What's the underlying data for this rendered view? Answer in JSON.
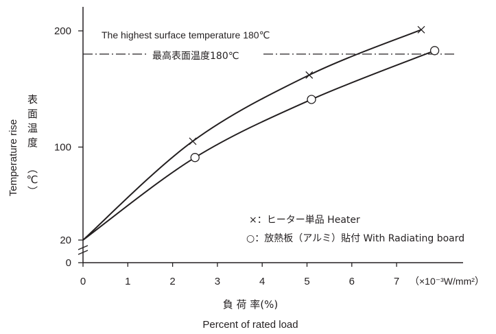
{
  "chart_data": {
    "type": "line",
    "x_ticks": [
      "0",
      "1",
      "2",
      "3",
      "4",
      "5",
      "6",
      "7"
    ],
    "x_unit_label": "（×10⁻³W/mm²）",
    "y_ticks": [
      "0",
      "20",
      "100",
      "200"
    ],
    "xlim": [
      0,
      7.9
    ],
    "ylim": [
      0,
      220
    ],
    "xlabel_jp": "負 荷 率(%)",
    "xlabel_en": "Percent of rated load",
    "ylabel_en": "Temperature rise",
    "ylabel_jp": "表面温度",
    "ylabel_unit": "（℃）",
    "reference_line": {
      "value": 180,
      "label_en": "The highest surface temperature 180℃",
      "label_jp": "最高表面温度180℃"
    },
    "series": [
      {
        "marker": "x",
        "legend_text": "×：ヒーター単品  Heater",
        "points": [
          [
            0,
            20
          ],
          [
            2.45,
            105
          ],
          [
            5.05,
            162
          ],
          [
            7.55,
            201
          ]
        ]
      },
      {
        "marker": "o",
        "legend_text": "○：放熱板（アルミ）貼付  With Radiating board",
        "points": [
          [
            0,
            20
          ],
          [
            2.5,
            91
          ],
          [
            5.1,
            141
          ],
          [
            7.85,
            183
          ]
        ]
      }
    ],
    "grid": false
  }
}
